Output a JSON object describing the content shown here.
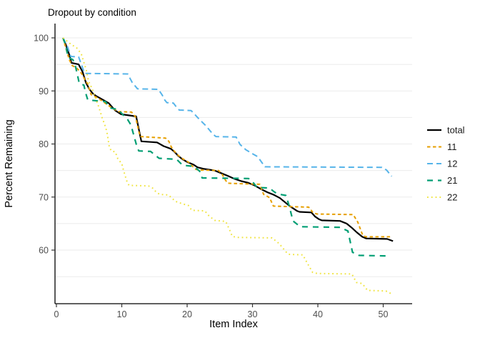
{
  "title": "Dropout by condition",
  "chart_data": {
    "type": "line",
    "title": "Dropout by condition",
    "xlabel": "Item Index",
    "ylabel": "Percent Remaining",
    "xlim": [
      -2,
      54.5
    ],
    "ylim": [
      50,
      102.5
    ],
    "x_ticks": [
      0,
      10,
      20,
      30,
      40,
      50
    ],
    "y_ticks": [
      100,
      90,
      80,
      70,
      60
    ],
    "gridlines_y": [
      100,
      95,
      90,
      85,
      80,
      75,
      70,
      65,
      60,
      55
    ],
    "grid": "horizontal-only",
    "legend_position": "right",
    "legend_entries": [
      "total",
      "11",
      "12",
      "21",
      "22"
    ],
    "palette": {
      "total": "#000000",
      "11": "#E69F00",
      "12": "#56B4E9",
      "21": "#009E73",
      "22": "#F0E442"
    },
    "series": [
      {
        "name": "total",
        "color": "#000000",
        "dash": "solid",
        "width": 2.2,
        "points": [
          [
            1,
            100
          ],
          [
            1.5,
            98.5
          ],
          [
            2,
            96.7
          ],
          [
            2.3,
            95.3
          ],
          [
            3.4,
            95.0
          ],
          [
            4,
            93.6
          ],
          [
            4.5,
            91.6
          ],
          [
            5,
            90.4
          ],
          [
            5.5,
            89.6
          ],
          [
            6,
            89.1
          ],
          [
            7,
            88.4
          ],
          [
            8,
            87.7
          ],
          [
            9,
            86.3
          ],
          [
            9.9,
            85.6
          ],
          [
            12.2,
            85.2
          ],
          [
            13,
            80.5
          ],
          [
            15.4,
            80.3
          ],
          [
            16.4,
            79.6
          ],
          [
            17.5,
            79.1
          ],
          [
            18,
            78.6
          ],
          [
            18.6,
            77.8
          ],
          [
            19.2,
            77.2
          ],
          [
            20,
            76.6
          ],
          [
            21,
            76.1
          ],
          [
            21.6,
            75.6
          ],
          [
            22.6,
            75.3
          ],
          [
            24.2,
            75.0
          ],
          [
            25.2,
            74.5
          ],
          [
            26.2,
            74.0
          ],
          [
            27.3,
            73.4
          ],
          [
            28.3,
            73.0
          ],
          [
            29.3,
            72.7
          ],
          [
            30.3,
            72.2
          ],
          [
            31.3,
            71.5
          ],
          [
            32.3,
            70.9
          ],
          [
            33.3,
            70.4
          ],
          [
            34.2,
            69.8
          ],
          [
            34.8,
            69.2
          ],
          [
            35.8,
            68.2
          ],
          [
            36.8,
            67.4
          ],
          [
            37.2,
            67.2
          ],
          [
            39,
            67.1
          ],
          [
            39.6,
            66.3
          ],
          [
            40.2,
            65.8
          ],
          [
            40.6,
            65.6
          ],
          [
            43.4,
            65.5
          ],
          [
            44.4,
            65.0
          ],
          [
            45.2,
            64.2
          ],
          [
            46,
            63.3
          ],
          [
            46.8,
            62.5
          ],
          [
            47.4,
            62.2
          ],
          [
            50.6,
            62.1
          ],
          [
            51.5,
            61.7
          ]
        ]
      },
      {
        "name": "11",
        "color": "#E69F00",
        "dash": "4.5,3.5",
        "width": 2,
        "points": [
          [
            1,
            100
          ],
          [
            1.6,
            97.4
          ],
          [
            2,
            95.8
          ],
          [
            2.4,
            94.8
          ],
          [
            3.1,
            94.3
          ],
          [
            3.6,
            93.7
          ],
          [
            4,
            93.0
          ],
          [
            4.4,
            92.0
          ],
          [
            4.8,
            91.3
          ],
          [
            5.3,
            89.3
          ],
          [
            6.3,
            88.7
          ],
          [
            7,
            88.1
          ],
          [
            7.8,
            87.4
          ],
          [
            8.5,
            86.8
          ],
          [
            9.5,
            86.1
          ],
          [
            11.5,
            86.0
          ],
          [
            12.1,
            85.1
          ],
          [
            12.8,
            81.4
          ],
          [
            16.7,
            81.1
          ],
          [
            17.2,
            80.5
          ],
          [
            17.6,
            79.4
          ],
          [
            18,
            78.7
          ],
          [
            18.6,
            77.9
          ],
          [
            19.2,
            77.3
          ],
          [
            20.3,
            76.5
          ],
          [
            21.2,
            75.3
          ],
          [
            21.7,
            75.1
          ],
          [
            24.8,
            75.0
          ],
          [
            25.3,
            74.4
          ],
          [
            25.8,
            73.3
          ],
          [
            26.2,
            72.6
          ],
          [
            31.1,
            72.4
          ],
          [
            31.7,
            70.5
          ],
          [
            32.6,
            69.9
          ],
          [
            33.2,
            68.3
          ],
          [
            38.6,
            68.1
          ],
          [
            39.3,
            67.0
          ],
          [
            39.9,
            66.8
          ],
          [
            45.4,
            66.7
          ],
          [
            46.1,
            65.3
          ],
          [
            46.9,
            62.7
          ],
          [
            47.4,
            62.5
          ],
          [
            51.3,
            62.5
          ]
        ]
      },
      {
        "name": "12",
        "color": "#56B4E9",
        "dash": "8,5",
        "width": 2,
        "points": [
          [
            1,
            100
          ],
          [
            1.7,
            98.3
          ],
          [
            2.2,
            96.5
          ],
          [
            3.4,
            96.4
          ],
          [
            3.9,
            94.7
          ],
          [
            4.3,
            93.3
          ],
          [
            10.9,
            93.2
          ],
          [
            11.6,
            91.6
          ],
          [
            12.4,
            90.4
          ],
          [
            15.6,
            90.3
          ],
          [
            16.2,
            89.2
          ],
          [
            16.5,
            88.4
          ],
          [
            16.9,
            87.8
          ],
          [
            17.9,
            87.7
          ],
          [
            18.4,
            86.9
          ],
          [
            18.8,
            86.4
          ],
          [
            20.6,
            86.3
          ],
          [
            21.3,
            85.4
          ],
          [
            21.9,
            84.6
          ],
          [
            22.4,
            84.0
          ],
          [
            22.9,
            83.4
          ],
          [
            23.5,
            82.5
          ],
          [
            23.9,
            81.9
          ],
          [
            24.4,
            81.4
          ],
          [
            27.5,
            81.3
          ],
          [
            28.1,
            79.9
          ],
          [
            29,
            78.9
          ],
          [
            29.8,
            78.3
          ],
          [
            30.8,
            77.6
          ],
          [
            31.2,
            76.9
          ],
          [
            31.9,
            75.7
          ],
          [
            49.8,
            75.6
          ],
          [
            50.5,
            75.1
          ],
          [
            51.3,
            73.9
          ]
        ]
      },
      {
        "name": "21",
        "color": "#009E73",
        "dash": "8,7",
        "width": 2.2,
        "points": [
          [
            1,
            100
          ],
          [
            1.4,
            98.7
          ],
          [
            1.8,
            96.3
          ],
          [
            2.5,
            95.9
          ],
          [
            2.8,
            95.2
          ],
          [
            3.2,
            93.1
          ],
          [
            3.5,
            91.4
          ],
          [
            4.2,
            91.1
          ],
          [
            4.5,
            89.5
          ],
          [
            4.8,
            88.3
          ],
          [
            7.5,
            88.0
          ],
          [
            8.2,
            86.8
          ],
          [
            9.4,
            86.5
          ],
          [
            10.9,
            84.6
          ],
          [
            11.4,
            83.6
          ],
          [
            12.3,
            79.6
          ],
          [
            12.6,
            78.7
          ],
          [
            14.4,
            78.6
          ],
          [
            15.1,
            77.9
          ],
          [
            15.7,
            77.3
          ],
          [
            18.4,
            77.1
          ],
          [
            18.9,
            76.5
          ],
          [
            19.3,
            76.0
          ],
          [
            20.9,
            75.8
          ],
          [
            21.4,
            75.4
          ],
          [
            21.9,
            74.9
          ],
          [
            22.3,
            73.6
          ],
          [
            29.4,
            73.5
          ],
          [
            30.2,
            72.6
          ],
          [
            30.7,
            71.8
          ],
          [
            32.6,
            71.7
          ],
          [
            33.3,
            71.0
          ],
          [
            33.8,
            70.6
          ],
          [
            35.1,
            70.3
          ],
          [
            35.6,
            68.4
          ],
          [
            36.2,
            65.5
          ],
          [
            37.3,
            64.4
          ],
          [
            43.4,
            64.3
          ],
          [
            44.6,
            63.6
          ],
          [
            45.3,
            59.6
          ],
          [
            46.3,
            59.0
          ],
          [
            50.9,
            58.9
          ]
        ]
      },
      {
        "name": "22",
        "color": "#F0E442",
        "dash": "1.8,4",
        "width": 2,
        "points": [
          [
            1,
            100
          ],
          [
            2,
            99.0
          ],
          [
            3.1,
            98.1
          ],
          [
            3.8,
            97.0
          ],
          [
            4.2,
            95.4
          ],
          [
            4.6,
            93.8
          ],
          [
            4.9,
            91.9
          ],
          [
            5.4,
            90.6
          ],
          [
            6,
            88.6
          ],
          [
            6.5,
            86.9
          ],
          [
            7,
            84.9
          ],
          [
            7.4,
            83.6
          ],
          [
            7.7,
            82.4
          ],
          [
            8.1,
            79.4
          ],
          [
            8.4,
            78.7
          ],
          [
            9,
            78.5
          ],
          [
            9.4,
            77.2
          ],
          [
            10,
            76.3
          ],
          [
            10.3,
            74.9
          ],
          [
            10.8,
            72.9
          ],
          [
            11.1,
            72.2
          ],
          [
            14.1,
            72.1
          ],
          [
            14.7,
            71.7
          ],
          [
            15.3,
            70.9
          ],
          [
            15.8,
            70.5
          ],
          [
            17.1,
            70.4
          ],
          [
            17.6,
            69.9
          ],
          [
            18.2,
            69.2
          ],
          [
            19.1,
            68.8
          ],
          [
            20.2,
            68.4
          ],
          [
            20.7,
            67.5
          ],
          [
            22.7,
            67.4
          ],
          [
            23.3,
            66.5
          ],
          [
            24.2,
            65.6
          ],
          [
            25.9,
            65.4
          ],
          [
            26.5,
            63.8
          ],
          [
            26.9,
            62.6
          ],
          [
            27.6,
            62.4
          ],
          [
            33,
            62.3
          ],
          [
            33.9,
            61.4
          ],
          [
            34.3,
            60.9
          ],
          [
            35.1,
            59.7
          ],
          [
            35.5,
            59.2
          ],
          [
            37.7,
            59.1
          ],
          [
            38.4,
            57.5
          ],
          [
            39.2,
            55.8
          ],
          [
            39.9,
            55.6
          ],
          [
            45.2,
            55.5
          ],
          [
            45.9,
            53.9
          ],
          [
            46.8,
            53.7
          ],
          [
            47.6,
            52.4
          ],
          [
            50.4,
            52.3
          ],
          [
            51.2,
            51.8
          ]
        ]
      }
    ],
    "colors": {
      "gridline": "#ebebeb",
      "axis_line": "#000000",
      "tick_mark": "#333333",
      "tick_label": "#4d4d4d",
      "background": "#ffffff"
    }
  }
}
